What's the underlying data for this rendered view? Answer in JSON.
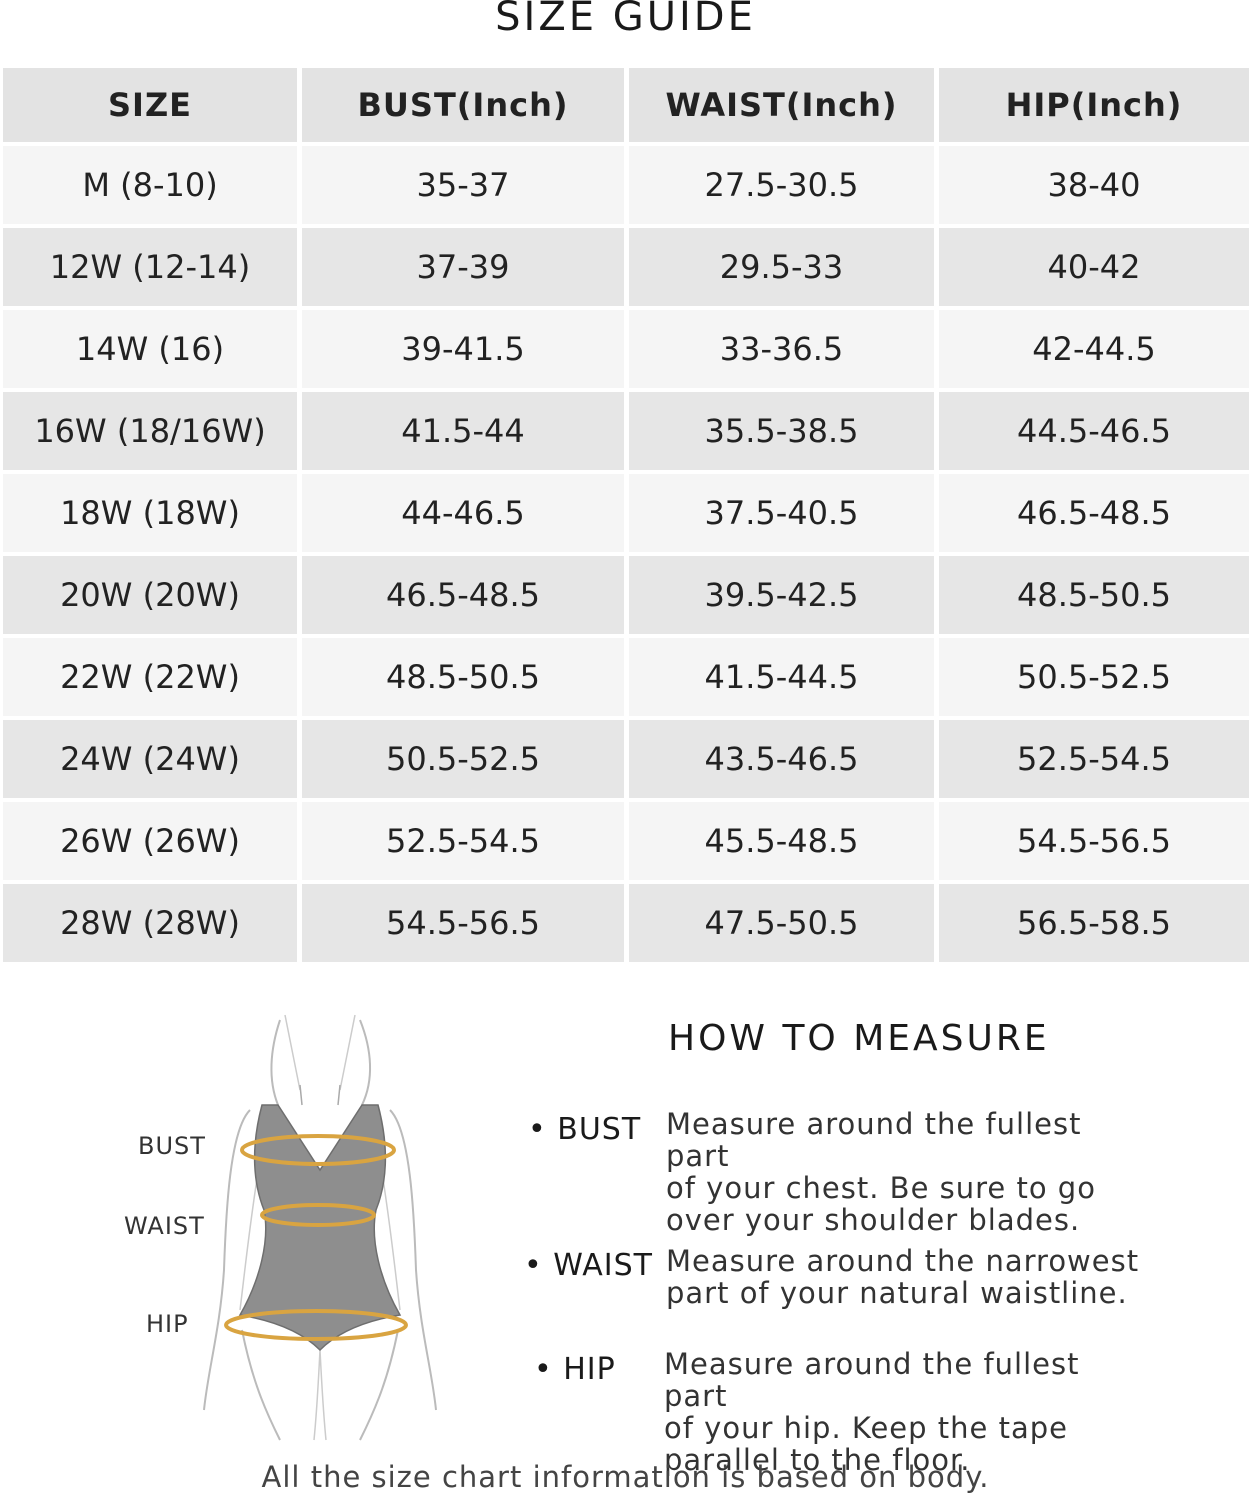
{
  "title": "SIZE GUIDE",
  "table": {
    "headers": [
      "SIZE",
      "BUST(Inch)",
      "WAIST(Inch)",
      "HIP(Inch)"
    ],
    "rows": [
      [
        "M (8-10)",
        "35-37",
        "27.5-30.5",
        "38-40"
      ],
      [
        "12W (12-14)",
        "37-39",
        "29.5-33",
        "40-42"
      ],
      [
        "14W (16)",
        "39-41.5",
        "33-36.5",
        "42-44.5"
      ],
      [
        "16W (18/16W)",
        "41.5-44",
        "35.5-38.5",
        "44.5-46.5"
      ],
      [
        "18W (18W)",
        "44-46.5",
        "37.5-40.5",
        "46.5-48.5"
      ],
      [
        "20W (20W)",
        "46.5-48.5",
        "39.5-42.5",
        "48.5-50.5"
      ],
      [
        "22W (22W)",
        "48.5-50.5",
        "41.5-44.5",
        "50.5-52.5"
      ],
      [
        "24W (24W)",
        "50.5-52.5",
        "43.5-46.5",
        "52.5-54.5"
      ],
      [
        "26W (26W)",
        "52.5-54.5",
        "45.5-48.5",
        "54.5-56.5"
      ],
      [
        "28W (28W)",
        "54.5-56.5",
        "47.5-50.5",
        "56.5-58.5"
      ]
    ]
  },
  "figure": {
    "labels": {
      "bust": "BUST",
      "waist": "WAIST",
      "hip": "HIP"
    },
    "tape_color": "#d9a441",
    "garment_color": "#8e8e8e"
  },
  "how_to_measure": {
    "title": "HOW TO MEASURE",
    "items": [
      {
        "term": "• BUST",
        "lines": [
          "Measure around the fullest part",
          "of your chest. Be sure to go",
          "over your shoulder blades."
        ]
      },
      {
        "term": "• WAIST",
        "lines": [
          "Measure around the narrowest",
          "part of your natural waistline."
        ]
      },
      {
        "term": "• HIP",
        "lines": [
          "Measure around the fullest part",
          "of your hip. Keep the tape",
          "parallel to the floor."
        ]
      }
    ]
  },
  "footer": "All the size chart information is based on body."
}
